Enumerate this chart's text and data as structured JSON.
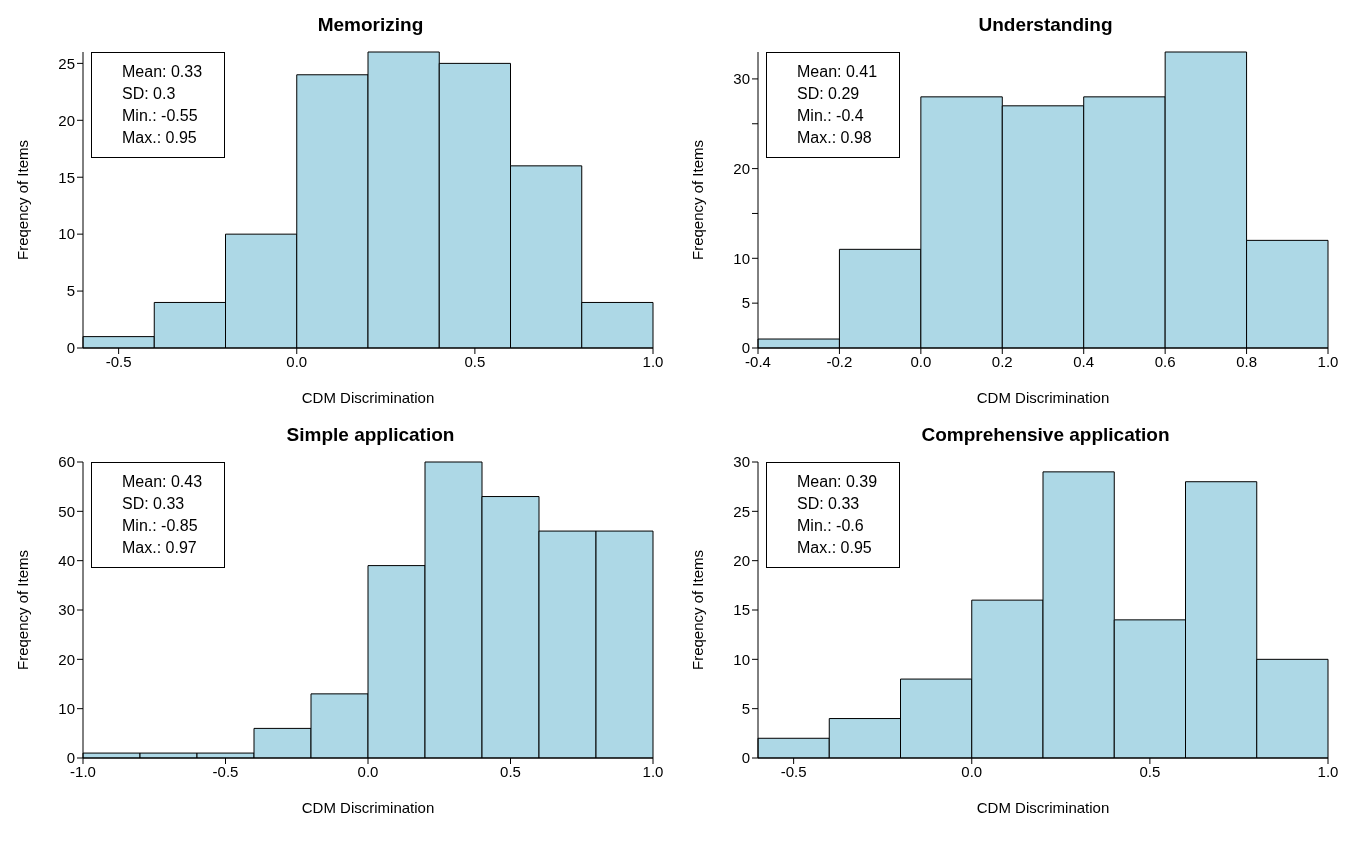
{
  "chart_data": [
    {
      "type": "histogram",
      "title": "Memorizing",
      "xlabel": "CDM Discrimination",
      "ylabel": "Freqency of Items",
      "color": "#add8e6",
      "bins": [
        -0.6,
        -0.4,
        -0.2,
        0.0,
        0.2,
        0.4,
        0.6,
        0.8,
        1.0
      ],
      "values": [
        1,
        4,
        10,
        24,
        26,
        25,
        16,
        4
      ],
      "xlim": [
        -0.6,
        1.0
      ],
      "xticks": [
        -0.5,
        {
          "value": 0,
          "label": "0.0"
        },
        0.5,
        {
          "value": 1,
          "label": "1.0"
        }
      ],
      "ylim": [
        0,
        26
      ],
      "yticks": [
        0,
        5,
        10,
        15,
        20,
        25
      ],
      "annotations": [
        "Mean: 0.33",
        "SD: 0.3",
        "Min.: -0.55",
        "Max.: 0.95"
      ]
    },
    {
      "type": "histogram",
      "title": "Understanding",
      "xlabel": "CDM Discrimination",
      "ylabel": "Freqency of Items",
      "color": "#add8e6",
      "bins": [
        -0.4,
        -0.2,
        0.0,
        0.2,
        0.4,
        0.6,
        0.8,
        1.0
      ],
      "values": [
        1,
        11,
        28,
        27,
        28,
        33,
        12
      ],
      "xlim": [
        -0.4,
        1.0
      ],
      "xticks": [
        -0.4,
        -0.2,
        {
          "value": 0,
          "label": "0.0"
        },
        0.2,
        0.4,
        0.6,
        0.8,
        {
          "value": 1,
          "label": "1.0"
        }
      ],
      "ylim": [
        0,
        33
      ],
      "yticks": [
        0,
        5,
        10,
        {
          "value": 15,
          "label": null
        },
        20,
        {
          "value": 25,
          "label": null
        },
        30
      ],
      "annotations": [
        "Mean: 0.41",
        "SD: 0.29",
        "Min.: -0.4",
        "Max.: 0.98"
      ]
    },
    {
      "type": "histogram",
      "title": "Simple application",
      "xlabel": "CDM Discrimination",
      "ylabel": "Freqency of Items",
      "color": "#add8e6",
      "bins": [
        -1.0,
        -0.8,
        -0.6,
        -0.4,
        -0.2,
        0.0,
        0.2,
        0.4,
        0.6,
        0.8,
        1.0
      ],
      "values": [
        1,
        1,
        1,
        6,
        13,
        39,
        60,
        53,
        46,
        46
      ],
      "xlim": [
        -1.0,
        1.0
      ],
      "xticks": [
        {
          "value": -1,
          "label": "-1.0"
        },
        -0.5,
        {
          "value": 0,
          "label": "0.0"
        },
        0.5,
        {
          "value": 1,
          "label": "1.0"
        }
      ],
      "ylim": [
        0,
        60
      ],
      "yticks": [
        0,
        10,
        20,
        30,
        40,
        50,
        60
      ],
      "annotations": [
        "Mean: 0.43",
        "SD: 0.33",
        "Min.: -0.85",
        "Max.: 0.97"
      ]
    },
    {
      "type": "histogram",
      "title": "Comprehensive application",
      "xlabel": "CDM Discrimination",
      "ylabel": "Freqency of Items",
      "color": "#add8e6",
      "bins": [
        -0.6,
        -0.4,
        -0.2,
        0.0,
        0.2,
        0.4,
        0.6,
        0.8,
        1.0
      ],
      "values": [
        2,
        4,
        8,
        16,
        29,
        14,
        28,
        10
      ],
      "xlim": [
        -0.6,
        1.0
      ],
      "xticks": [
        -0.5,
        {
          "value": 0,
          "label": "0.0"
        },
        0.5,
        {
          "value": 1,
          "label": "1.0"
        }
      ],
      "ylim": [
        0,
        30
      ],
      "yticks": [
        0,
        5,
        10,
        15,
        20,
        25,
        30
      ],
      "annotations": [
        "Mean: 0.39",
        "SD: 0.33",
        "Min.: -0.6",
        "Max.: 0.95"
      ]
    }
  ]
}
